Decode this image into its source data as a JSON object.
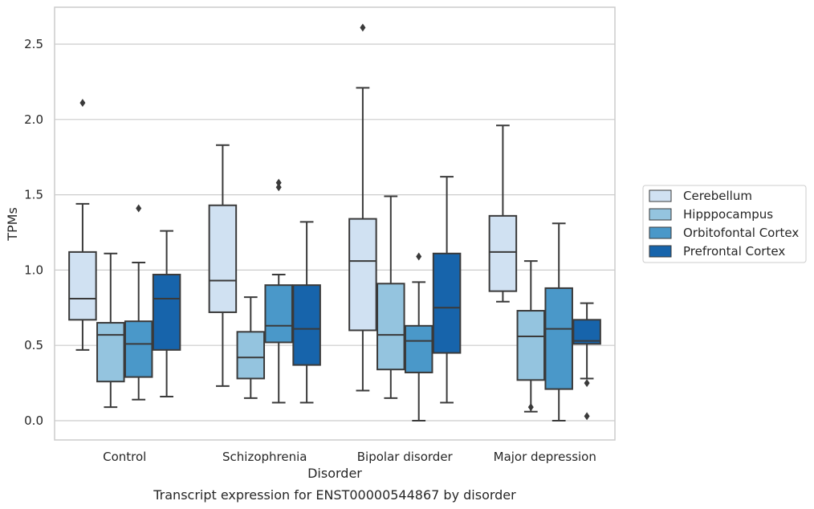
{
  "chart_data": {
    "type": "box",
    "caption": "Transcript expression for ENST00000544867 by disorder",
    "xlabel": "Disorder",
    "ylabel": "TPMs",
    "ylim": [
      -0.12,
      2.75
    ],
    "yticks": [
      0.0,
      0.5,
      1.0,
      1.5,
      2.0,
      2.5
    ],
    "ytick_labels": [
      "0.0",
      "0.5",
      "1.0",
      "1.5",
      "2.0",
      "2.5"
    ],
    "grid": "horizontal",
    "legend_position": "right",
    "categories": [
      "Control",
      "Schizophrenia",
      "Bipolar disorder",
      "Major depression"
    ],
    "series": [
      {
        "name": "Cerebellum",
        "color": "#d0e1f2",
        "boxes": [
          {
            "whislo": 0.47,
            "q1": 0.67,
            "med": 0.81,
            "q3": 1.12,
            "whishi": 1.44,
            "fliers": [
              2.11
            ]
          },
          {
            "whislo": 0.23,
            "q1": 0.72,
            "med": 0.93,
            "q3": 1.43,
            "whishi": 1.83,
            "fliers": []
          },
          {
            "whislo": 0.2,
            "q1": 0.6,
            "med": 1.06,
            "q3": 1.34,
            "whishi": 2.21,
            "fliers": [
              2.61
            ]
          },
          {
            "whislo": 0.79,
            "q1": 0.86,
            "med": 1.12,
            "q3": 1.36,
            "whishi": 1.96,
            "fliers": []
          }
        ]
      },
      {
        "name": "Hipppocampus",
        "color": "#94c4df",
        "boxes": [
          {
            "whislo": 0.09,
            "q1": 0.26,
            "med": 0.57,
            "q3": 0.65,
            "whishi": 1.11,
            "fliers": []
          },
          {
            "whislo": 0.15,
            "q1": 0.28,
            "med": 0.42,
            "q3": 0.59,
            "whishi": 0.82,
            "fliers": []
          },
          {
            "whislo": 0.15,
            "q1": 0.34,
            "med": 0.57,
            "q3": 0.91,
            "whishi": 1.49,
            "fliers": []
          },
          {
            "whislo": 0.06,
            "q1": 0.27,
            "med": 0.56,
            "q3": 0.73,
            "whishi": 1.06,
            "fliers": [
              0.09
            ]
          }
        ]
      },
      {
        "name": "Orbitofontal Cortex",
        "color": "#4a98c9",
        "boxes": [
          {
            "whislo": 0.14,
            "q1": 0.29,
            "med": 0.51,
            "q3": 0.66,
            "whishi": 1.05,
            "fliers": [
              1.41
            ]
          },
          {
            "whislo": 0.12,
            "q1": 0.52,
            "med": 0.63,
            "q3": 0.9,
            "whishi": 0.97,
            "fliers": [
              1.55,
              1.58
            ]
          },
          {
            "whislo": 0.0,
            "q1": 0.32,
            "med": 0.53,
            "q3": 0.63,
            "whishi": 0.92,
            "fliers": [
              1.09
            ]
          },
          {
            "whislo": 0.0,
            "q1": 0.21,
            "med": 0.61,
            "q3": 0.88,
            "whishi": 1.31,
            "fliers": []
          }
        ]
      },
      {
        "name": "Prefrontal Cortex",
        "color": "#1764ab",
        "boxes": [
          {
            "whislo": 0.16,
            "q1": 0.47,
            "med": 0.81,
            "q3": 0.97,
            "whishi": 1.26,
            "fliers": []
          },
          {
            "whislo": 0.12,
            "q1": 0.37,
            "med": 0.61,
            "q3": 0.9,
            "whishi": 1.32,
            "fliers": []
          },
          {
            "whislo": 0.12,
            "q1": 0.45,
            "med": 0.75,
            "q3": 1.11,
            "whishi": 1.62,
            "fliers": []
          },
          {
            "whislo": 0.28,
            "q1": 0.51,
            "med": 0.53,
            "q3": 0.67,
            "whishi": 0.78,
            "fliers": [
              0.25,
              0.03
            ]
          }
        ]
      }
    ]
  }
}
